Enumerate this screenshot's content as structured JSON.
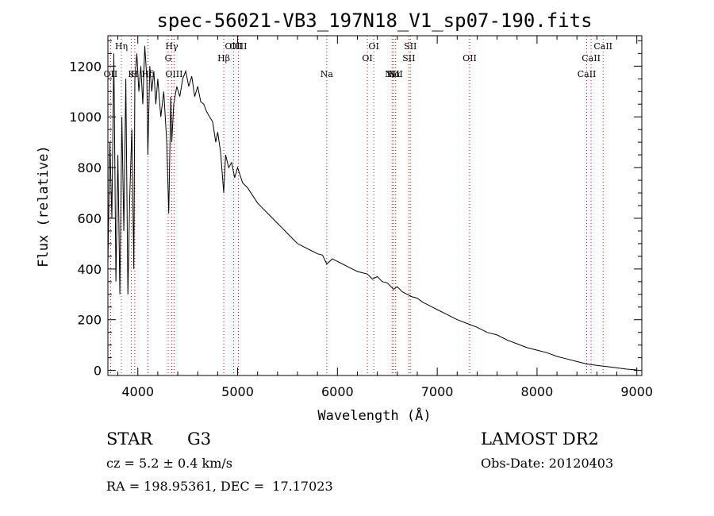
{
  "chart_data": {
    "type": "line",
    "title": "spec-56021-VB3_197N18_V1_sp07-190.fits",
    "xlabel": "Wavelength (Å)",
    "ylabel": "Flux (relative)",
    "xlim": [
      3700,
      9050
    ],
    "ylim": [
      -20,
      1320
    ],
    "xticks": [
      4000,
      5000,
      6000,
      7000,
      8000,
      9000
    ],
    "yticks": [
      0,
      200,
      400,
      600,
      800,
      1000,
      1200
    ],
    "grid": false,
    "line_color": "#000000",
    "marker_color": "#cc0000",
    "series": [
      {
        "x": [
          3700,
          3720,
          3740,
          3760,
          3780,
          3800,
          3820,
          3840,
          3860,
          3880,
          3900,
          3920,
          3940,
          3960,
          3970,
          3990,
          4010,
          4030,
          4050,
          4070,
          4090,
          4101,
          4120,
          4140,
          4160,
          4180,
          4200,
          4230,
          4260,
          4290,
          4310,
          4330,
          4340,
          4360,
          4390,
          4420,
          4450,
          4480,
          4510,
          4540,
          4570,
          4600,
          4630,
          4660,
          4690,
          4720,
          4750,
          4780,
          4800,
          4830,
          4861,
          4880,
          4910,
          4940,
          4970,
          5000,
          5050,
          5100,
          5150,
          5200,
          5250,
          5300,
          5350,
          5400,
          5450,
          5500,
          5550,
          5600,
          5650,
          5700,
          5750,
          5800,
          5850,
          5893,
          5950,
          6000,
          6050,
          6100,
          6150,
          6200,
          6250,
          6300,
          6350,
          6400,
          6450,
          6500,
          6563,
          6600,
          6650,
          6700,
          6750,
          6800,
          6850,
          6900,
          6950,
          7000,
          7100,
          7200,
          7300,
          7400,
          7500,
          7600,
          7700,
          7800,
          7900,
          8000,
          8100,
          8200,
          8300,
          8400,
          8500,
          8600,
          8700,
          8800,
          8900,
          9000
        ],
        "y": [
          420,
          900,
          600,
          1250,
          350,
          850,
          300,
          1000,
          550,
          1150,
          300,
          700,
          950,
          400,
          1150,
          1250,
          1100,
          1200,
          1050,
          1280,
          1150,
          850,
          1200,
          1100,
          1180,
          1050,
          1150,
          1000,
          1100,
          900,
          620,
          1080,
          900,
          1050,
          1120,
          1080,
          1150,
          1180,
          1120,
          1160,
          1080,
          1120,
          1060,
          1050,
          1020,
          1000,
          980,
          900,
          940,
          860,
          700,
          850,
          800,
          820,
          760,
          800,
          740,
          720,
          690,
          660,
          640,
          620,
          600,
          580,
          560,
          540,
          520,
          500,
          490,
          480,
          470,
          460,
          455,
          420,
          440,
          430,
          420,
          410,
          400,
          390,
          385,
          380,
          360,
          370,
          350,
          345,
          320,
          330,
          310,
          300,
          290,
          285,
          270,
          260,
          250,
          240,
          220,
          200,
          185,
          170,
          150,
          140,
          120,
          105,
          90,
          80,
          70,
          55,
          45,
          35,
          25,
          20,
          15,
          10,
          5,
          2
        ]
      }
    ],
    "lines": [
      {
        "wl": 3727,
        "label": "OII",
        "row": 4
      },
      {
        "wl": 3835,
        "label": "Hη",
        "row": 1
      },
      {
        "wl": 3934,
        "label": "K",
        "row": 4
      },
      {
        "wl": 3969,
        "label": "H",
        "row": 4
      },
      {
        "wl": 4101,
        "label": "Hδ",
        "row": 4
      },
      {
        "wl": 4304,
        "label": "G",
        "row": 3
      },
      {
        "wl": 4340,
        "label": "Hγ",
        "row": 2
      },
      {
        "wl": 4363,
        "label": "OIII",
        "row": 4
      },
      {
        "wl": 4861,
        "label": "Hβ",
        "row": 3
      },
      {
        "wl": 4959,
        "label": "OIII",
        "row": 1
      },
      {
        "wl": 5007,
        "label": "OIII",
        "row": 1
      },
      {
        "wl": 5893,
        "label": "Na",
        "row": 4
      },
      {
        "wl": 6300,
        "label": "OI",
        "row": 3
      },
      {
        "wl": 6364,
        "label": "OI",
        "row": 1
      },
      {
        "wl": 6548,
        "label": "NII",
        "row": 4
      },
      {
        "wl": 6563,
        "label": "Hα",
        "row": 4
      },
      {
        "wl": 6583,
        "label": "NII",
        "row": 4
      },
      {
        "wl": 6716,
        "label": "SII",
        "row": 3
      },
      {
        "wl": 6731,
        "label": "SII",
        "row": 1
      },
      {
        "wl": 7325,
        "label": "OII",
        "row": 3
      },
      {
        "wl": 8498,
        "label": "CaII",
        "row": 4
      },
      {
        "wl": 8542,
        "label": "CaII",
        "row": 3
      },
      {
        "wl": 8662,
        "label": "CaII",
        "row": 1
      }
    ]
  },
  "info": {
    "class_label": "STAR",
    "subclass": "G3",
    "survey": "LAMOST DR2",
    "cz": "cz = 5.2 ± 0.4 km/s",
    "obs_date": "Obs-Date: 20120403",
    "coords": "RA = 198.95361, DEC =  17.17023"
  }
}
